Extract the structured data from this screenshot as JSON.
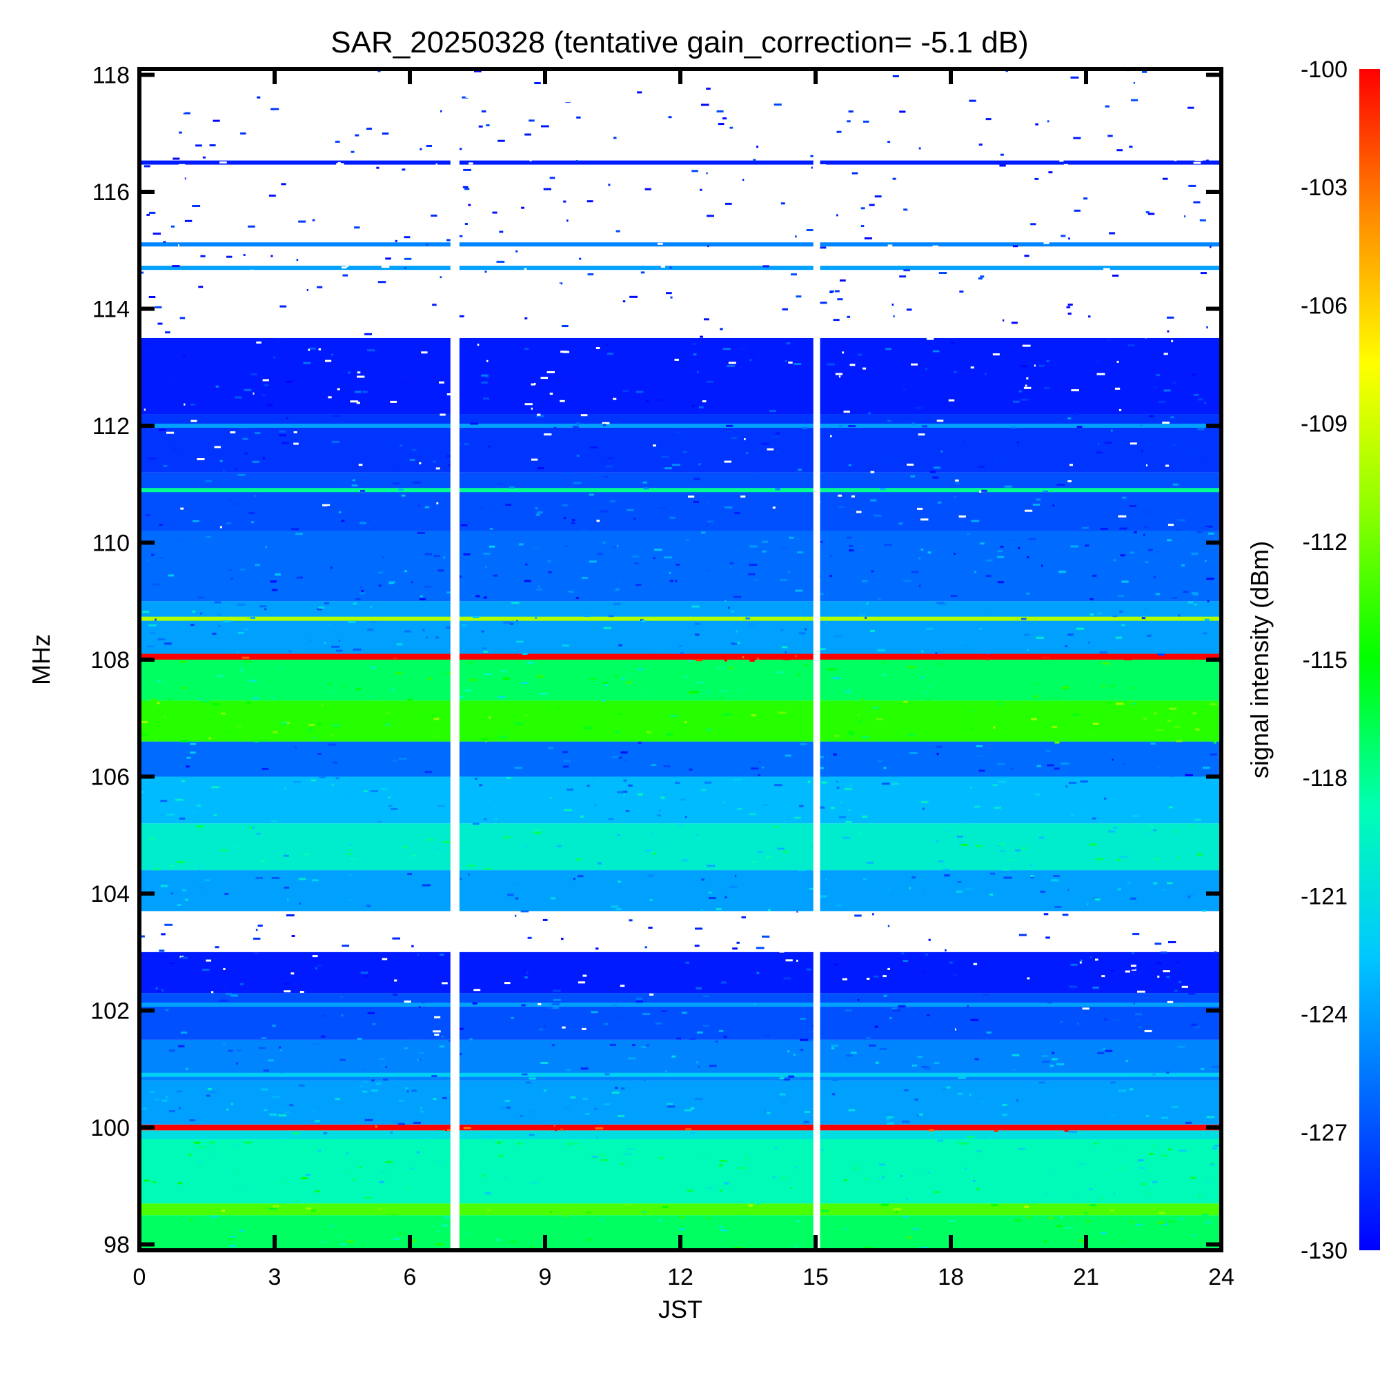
{
  "chart_data": {
    "type": "heatmap",
    "title": "SAR_20250328 (tentative gain_correction= -5.1 dB)",
    "xlabel": "JST",
    "ylabel": "MHz",
    "colorbar_label": "signal intensity (dBm)",
    "x_ticks": [
      0,
      3,
      6,
      9,
      12,
      15,
      18,
      21,
      24
    ],
    "x_tick_labels": [
      "0",
      "3",
      "6",
      "9",
      "12",
      "15",
      "18",
      "21",
      "24"
    ],
    "y_ticks": [
      98,
      100,
      102,
      104,
      106,
      108,
      110,
      112,
      114,
      116,
      118
    ],
    "y_tick_labels": [
      "98",
      "100",
      "102",
      "104",
      "106",
      "108",
      "110",
      "112",
      "114",
      "116",
      "118"
    ],
    "colorbar_ticks": [
      -100,
      -103,
      -106,
      -109,
      -112,
      -115,
      -118,
      -121,
      -124,
      -127,
      -130
    ],
    "colorbar_tick_labels": [
      "-100",
      "-103",
      "-106",
      "-109",
      "-112",
      "-115",
      "-118",
      "-121",
      "-124",
      "-127",
      "-130"
    ],
    "xlim": [
      0,
      24
    ],
    "ylim": [
      97.9,
      118.1
    ],
    "clim": [
      -130,
      -100
    ],
    "colormap": "jet",
    "below_min_color": "#ffffff",
    "data_gaps_hours": [
      [
        6.9,
        7.1
      ],
      [
        14.95,
        15.1
      ]
    ],
    "frequency_bands": [
      {
        "from": 97.9,
        "to": 98.5,
        "level_dbm": -117
      },
      {
        "from": 98.5,
        "to": 98.7,
        "level_dbm": -113
      },
      {
        "from": 98.7,
        "to": 99.8,
        "level_dbm": -119
      },
      {
        "from": 99.8,
        "to": 99.95,
        "level_dbm": -121
      },
      {
        "from": 99.95,
        "to": 100.05,
        "level_dbm": -100
      },
      {
        "from": 100.05,
        "to": 100.8,
        "level_dbm": -124
      },
      {
        "from": 100.8,
        "to": 101.5,
        "level_dbm": -125
      },
      {
        "from": 101.5,
        "to": 102.3,
        "level_dbm": -127
      },
      {
        "from": 102.3,
        "to": 103.0,
        "level_dbm": -129
      },
      {
        "from": 103.0,
        "to": 103.7,
        "level_dbm": -131
      },
      {
        "from": 103.7,
        "to": 104.4,
        "level_dbm": -124
      },
      {
        "from": 104.4,
        "to": 105.2,
        "level_dbm": -120
      },
      {
        "from": 105.2,
        "to": 106.0,
        "level_dbm": -123
      },
      {
        "from": 106.0,
        "to": 106.6,
        "level_dbm": -126
      },
      {
        "from": 106.6,
        "to": 107.3,
        "level_dbm": -114
      },
      {
        "from": 107.3,
        "to": 108.0,
        "level_dbm": -117
      },
      {
        "from": 108.0,
        "to": 108.1,
        "level_dbm": -100
      },
      {
        "from": 108.1,
        "to": 109.0,
        "level_dbm": -124
      },
      {
        "from": 109.0,
        "to": 110.2,
        "level_dbm": -126
      },
      {
        "from": 110.2,
        "to": 111.2,
        "level_dbm": -127
      },
      {
        "from": 111.2,
        "to": 112.2,
        "level_dbm": -128
      },
      {
        "from": 112.2,
        "to": 113.5,
        "level_dbm": -129
      },
      {
        "from": 113.5,
        "to": 118.1,
        "level_dbm": -131
      }
    ],
    "narrow_carriers": [
      {
        "mhz": 114.7,
        "level_dbm": -124
      },
      {
        "mhz": 115.1,
        "level_dbm": -125
      },
      {
        "mhz": 116.5,
        "level_dbm": -129
      },
      {
        "mhz": 110.9,
        "level_dbm": -118
      },
      {
        "mhz": 108.7,
        "level_dbm": -110
      },
      {
        "mhz": 112.0,
        "level_dbm": -124
      },
      {
        "mhz": 100.9,
        "level_dbm": -122
      },
      {
        "mhz": 102.1,
        "level_dbm": -124
      }
    ]
  }
}
